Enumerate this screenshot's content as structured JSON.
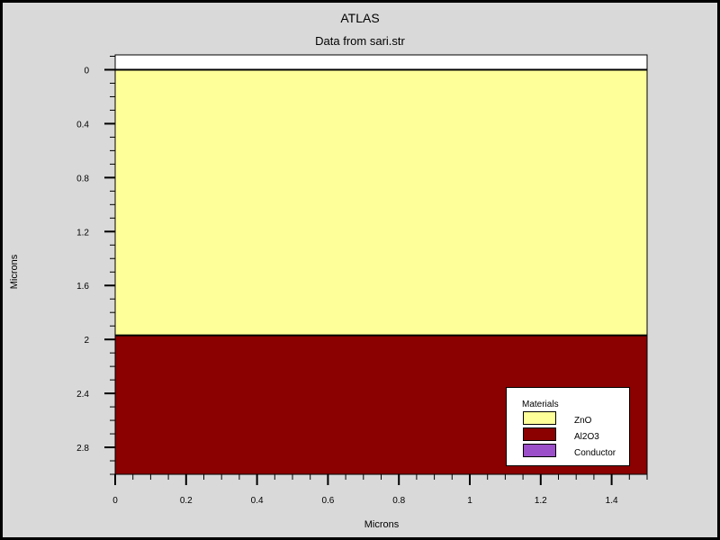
{
  "chart_data": {
    "type": "area",
    "title": "ATLAS",
    "subtitle": "Data from sari.str",
    "xlabel": "Microns",
    "ylabel": "Microns",
    "xlim": [
      0,
      1.5
    ],
    "ylim": [
      -0.11,
      3.0
    ],
    "y_inverted": true,
    "x_ticks": [
      "0",
      "0.2",
      "0.4",
      "0.6",
      "0.8",
      "1",
      "1.2",
      "1.4"
    ],
    "y_ticks": [
      "0",
      "0.4",
      "0.8",
      "1.2",
      "1.6",
      "2",
      "2.4",
      "2.8"
    ],
    "regions": [
      {
        "material": "ZnO",
        "x_from": 0,
        "x_to": 1.5,
        "y_from": 0,
        "y_to": 1.97,
        "color": "#ffff99"
      },
      {
        "material": "Al2O3",
        "x_from": 0,
        "x_to": 1.5,
        "y_from": 1.97,
        "y_to": 3.0,
        "color": "#8b0000"
      }
    ],
    "legend": {
      "title": "Materials",
      "position": "bottom-right",
      "items": [
        {
          "label": "ZnO",
          "color": "#ffff99"
        },
        {
          "label": "Al2O3",
          "color": "#8b0000"
        },
        {
          "label": "Conductor",
          "color": "#9b4fc8"
        }
      ]
    }
  }
}
